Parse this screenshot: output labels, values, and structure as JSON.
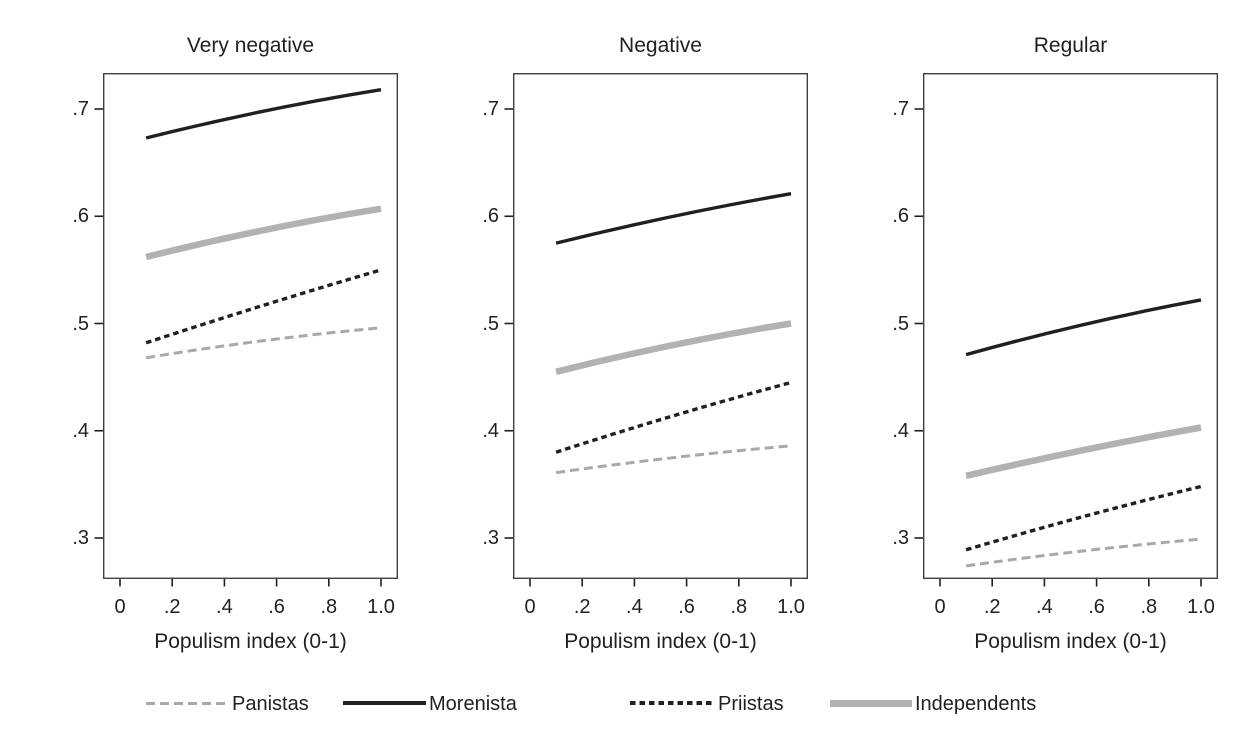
{
  "figure": {
    "xlabel": "Populism index (0-1)",
    "x_tick_labels": [
      "0",
      ".2",
      ".4",
      ".6",
      ".8",
      "1.0"
    ],
    "y_tick_labels": [
      ".7",
      ".6",
      ".5",
      ".4",
      ".3"
    ],
    "colors": {
      "black_line": "#231f20",
      "gray_thick_line": "#b2b2b2",
      "gray_dashed_line": "#a9a9a9",
      "frame": "#414141",
      "text": "#231f20",
      "background": "#ffffff"
    }
  },
  "legend": {
    "items": [
      {
        "label": "Panistas",
        "style": "gray-dashed"
      },
      {
        "label": "Morenista",
        "style": "black-solid"
      },
      {
        "label": "Priistas",
        "style": "black-dotted"
      },
      {
        "label": "Independents",
        "style": "gray-thick"
      }
    ]
  },
  "chart_data": [
    {
      "type": "line",
      "title": "Very negative",
      "xlabel": "Populism index (0-1)",
      "x": [
        0.1,
        0.55,
        1.0
      ],
      "x_ticks": [
        0,
        0.2,
        0.4,
        0.6,
        0.8,
        1.0
      ],
      "y_ticks": [
        0.7,
        0.6,
        0.5,
        0.4,
        0.3
      ],
      "xlim": [
        -0.065,
        1.06
      ],
      "ylim": [
        0.26,
        0.735
      ],
      "grid": false,
      "series": [
        {
          "name": "Panistas",
          "style": "gray-dashed",
          "values": [
            0.468,
            0.484,
            0.496
          ]
        },
        {
          "name": "Priistas",
          "style": "black-dotted",
          "values": [
            0.482,
            0.517,
            0.55
          ]
        },
        {
          "name": "Independents",
          "style": "gray-thick",
          "values": [
            0.562,
            0.587,
            0.607
          ]
        },
        {
          "name": "Morenista",
          "style": "black-solid",
          "values": [
            0.673,
            0.698,
            0.718
          ]
        }
      ]
    },
    {
      "type": "line",
      "title": "Negative",
      "xlabel": "Populism index (0-1)",
      "x": [
        0.1,
        0.55,
        1.0
      ],
      "x_ticks": [
        0,
        0.2,
        0.4,
        0.6,
        0.8,
        1.0
      ],
      "y_ticks": [
        0.7,
        0.6,
        0.5,
        0.4,
        0.3
      ],
      "xlim": [
        -0.065,
        1.06
      ],
      "ylim": [
        0.26,
        0.735
      ],
      "grid": false,
      "series": [
        {
          "name": "Panistas",
          "style": "gray-dashed",
          "values": [
            0.361,
            0.375,
            0.386
          ]
        },
        {
          "name": "Priistas",
          "style": "black-dotted",
          "values": [
            0.38,
            0.414,
            0.445
          ]
        },
        {
          "name": "Independents",
          "style": "gray-thick",
          "values": [
            0.455,
            0.48,
            0.5
          ]
        },
        {
          "name": "Morenista",
          "style": "black-solid",
          "values": [
            0.575,
            0.6,
            0.621
          ]
        }
      ]
    },
    {
      "type": "line",
      "title": "Regular",
      "xlabel": "Populism index (0-1)",
      "x": [
        0.1,
        0.55,
        1.0
      ],
      "x_ticks": [
        0,
        0.2,
        0.4,
        0.6,
        0.8,
        1.0
      ],
      "y_ticks": [
        0.7,
        0.6,
        0.5,
        0.4,
        0.3
      ],
      "xlim": [
        -0.065,
        1.06
      ],
      "ylim": [
        0.26,
        0.735
      ],
      "grid": false,
      "series": [
        {
          "name": "Panistas",
          "style": "gray-dashed",
          "values": [
            0.274,
            0.288,
            0.299
          ]
        },
        {
          "name": "Priistas",
          "style": "black-dotted",
          "values": [
            0.289,
            0.32,
            0.348
          ]
        },
        {
          "name": "Independents",
          "style": "gray-thick",
          "values": [
            0.358,
            0.382,
            0.403
          ]
        },
        {
          "name": "Morenista",
          "style": "black-solid",
          "values": [
            0.471,
            0.499,
            0.522
          ]
        }
      ]
    }
  ]
}
